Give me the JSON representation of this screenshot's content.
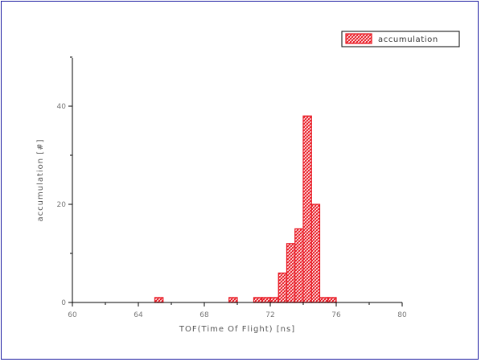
{
  "chart_data": {
    "type": "bar",
    "xlabel": "TOF(Time Of Flight) [ns]",
    "ylabel": "accumulation [#]",
    "xlim": [
      60,
      80
    ],
    "ylim": [
      0,
      50
    ],
    "x_ticks": [
      60,
      64,
      68,
      72,
      76,
      80
    ],
    "x_tick_labels": [
      "60",
      "64",
      "68",
      "72",
      "76",
      "80"
    ],
    "y_ticks": [
      0,
      20,
      40
    ],
    "y_tick_labels": [
      "0",
      "20",
      "40"
    ],
    "bin_width": 0.5,
    "series": [
      {
        "name": "accumulation",
        "color": "#e8141e",
        "x": [
          65.25,
          69.75,
          71.25,
          71.75,
          72.25,
          72.75,
          73.25,
          73.75,
          74.25,
          74.75,
          75.25,
          75.75
        ],
        "values": [
          1,
          1,
          1,
          1,
          1,
          6,
          12,
          15,
          38,
          20,
          1,
          1
        ]
      }
    ],
    "legend": {
      "position": "top-right"
    },
    "grid": false
  }
}
